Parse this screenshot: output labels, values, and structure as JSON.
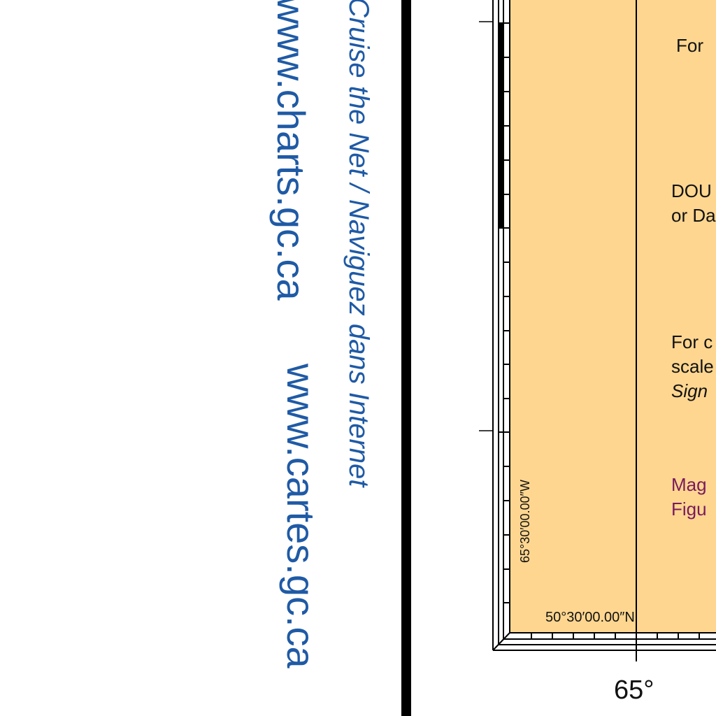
{
  "margin_text": {
    "url_en": "www.charts.gc.ca",
    "url_fr": "www.cartes.gc.ca",
    "slogan": "Cruise the Net / Naviguez dans Internet"
  },
  "chart": {
    "fill_color": "#fed690",
    "border_color": "#000000",
    "text_color": "#1f5aa5",
    "note_color": "#7a1a5e",
    "lat_label": "50°30′00.00″N",
    "lon_label": "65°30′00.00″W",
    "lon_scale_label": "65°",
    "panel": {
      "line1": "For",
      "line2a": "DOU",
      "line2b": "or Da",
      "line3a": "For c",
      "line3b": "scale",
      "line3c": "Sign",
      "line4a": "Mag",
      "line4b": "Figu"
    }
  }
}
